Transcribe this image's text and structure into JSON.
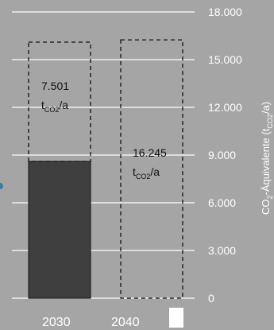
{
  "chart_data": {
    "type": "bar",
    "categories": [
      "2030",
      "2040"
    ],
    "series": [
      {
        "values": [
          8.6,
          0
        ],
        "color": "#3f3f3f"
      },
      {
        "values": [
          7.501,
          16.245
        ],
        "style": "dashed-outline"
      }
    ],
    "annotations": [
      {
        "category": "2030",
        "value": "7.501",
        "unit_base": "t",
        "unit_sub": "CO2",
        "unit_tail": "/a"
      },
      {
        "category": "2040",
        "value": "16.245",
        "unit_base": "t",
        "unit_sub": "CO2",
        "unit_tail": "/a"
      }
    ],
    "ylim": [
      0,
      18000
    ],
    "y_ticks": [
      {
        "value": 0,
        "label": "0"
      },
      {
        "value": 3000,
        "label": "3.000"
      },
      {
        "value": 6000,
        "label": "6.000"
      },
      {
        "value": 9000,
        "label": "9.000"
      },
      {
        "value": 12000,
        "label": "12.000"
      },
      {
        "value": 15000,
        "label": "15.000"
      },
      {
        "value": 18000,
        "label": "18.000"
      }
    ],
    "ylabel": {
      "base": "CO",
      "sub1": "2",
      "middle": "-Äquivalente (t",
      "sub2": "CO2",
      "tail": "/a)"
    },
    "grid": true,
    "axis_position": "right",
    "colors": {
      "background": "#a5a5a5",
      "grid": "#ffffff",
      "bar_fill": "#3f3f3f",
      "outline": "#111111"
    }
  }
}
